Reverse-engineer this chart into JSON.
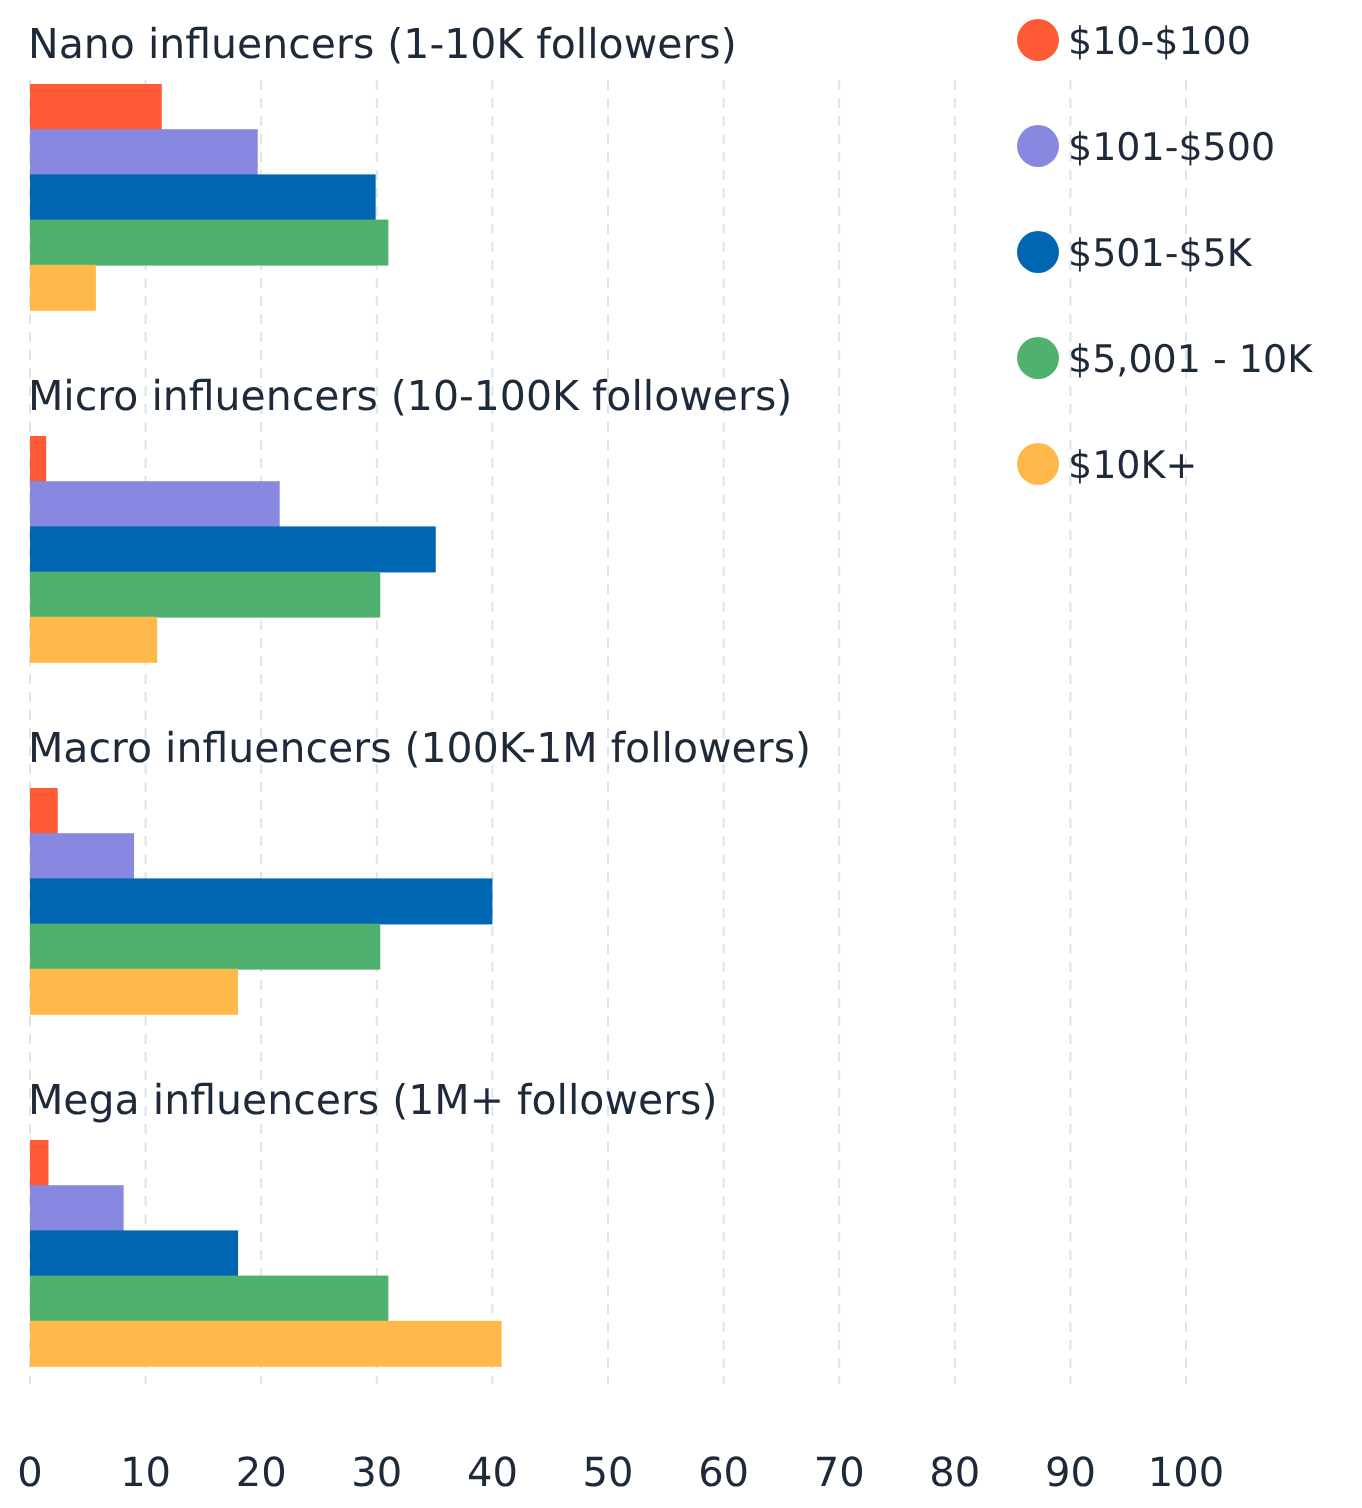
{
  "chart_data": {
    "type": "bar",
    "orientation": "horizontal",
    "categories": [
      "Nano influencers (1-10K followers)",
      "Micro influencers (10-100K followers)",
      "Macro influencers (100K-1M followers)",
      "Mega influencers (1M+ followers)"
    ],
    "series": [
      {
        "name": "$10-$100",
        "color": "#ff5a36",
        "values": [
          11.4,
          1.4,
          2.4,
          1.6
        ]
      },
      {
        "name": "$101-$500",
        "color": "#8789e0",
        "values": [
          19.7,
          21.6,
          9,
          8.1
        ]
      },
      {
        "name": "$501-$5K",
        "color": "#0066b2",
        "values": [
          29.9,
          35.1,
          40,
          18
        ]
      },
      {
        "name": "$5,001 - 10K",
        "color": "#50b16e",
        "values": [
          31,
          30.3,
          30.3,
          31
        ]
      },
      {
        "name": "$10K+",
        "color": "#ffb94b",
        "values": [
          5.7,
          11,
          18,
          40.8
        ]
      }
    ],
    "xlim": [
      0,
      100
    ],
    "xticks": [
      0,
      10,
      20,
      30,
      40,
      50,
      60,
      70,
      80,
      90,
      100
    ],
    "grid": "x",
    "legend": "top right"
  }
}
